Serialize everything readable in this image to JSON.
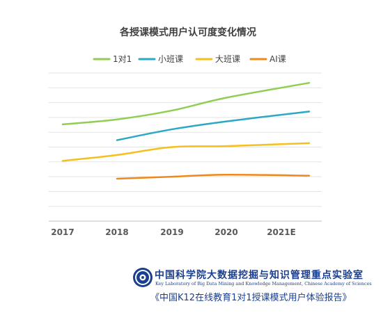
{
  "chart_data": {
    "type": "line",
    "title": "各授课模式用户认可度变化情况",
    "categories": [
      "2017",
      "2018",
      "2019",
      "2020",
      "2021E"
    ],
    "series": [
      {
        "name": "1对1",
        "color": "#8fce52",
        "values": [
          0.48,
          0.53,
          0.62,
          0.75,
          0.9
        ]
      },
      {
        "name": "小班课",
        "color": "#2aa8c4",
        "values": [
          null,
          0.32,
          0.43,
          0.51,
          0.61
        ]
      },
      {
        "name": "大班课",
        "color": "#f5c01d",
        "values": [
          0.11,
          0.17,
          0.25,
          0.26,
          0.29
        ]
      },
      {
        "name": "AI课",
        "color": "#ee8a1a",
        "values": [
          null,
          -0.07,
          -0.05,
          -0.03,
          -0.04
        ]
      }
    ],
    "ylim": [
      -0.5,
      1.0
    ],
    "y_axis_labels_shown": false,
    "grid": true,
    "legend": "top"
  },
  "footer": {
    "institution_cn": "中国科学院大数据挖掘与知识管理重点实验室",
    "institution_en": "Key Laboratory of Big Data Mining and Knowledge Management, Chinese Academy of Sciences",
    "report_title": "《中国K12在线教育1对1授课模式用户体验报告》",
    "logo_icon": "cas-logo-icon"
  }
}
